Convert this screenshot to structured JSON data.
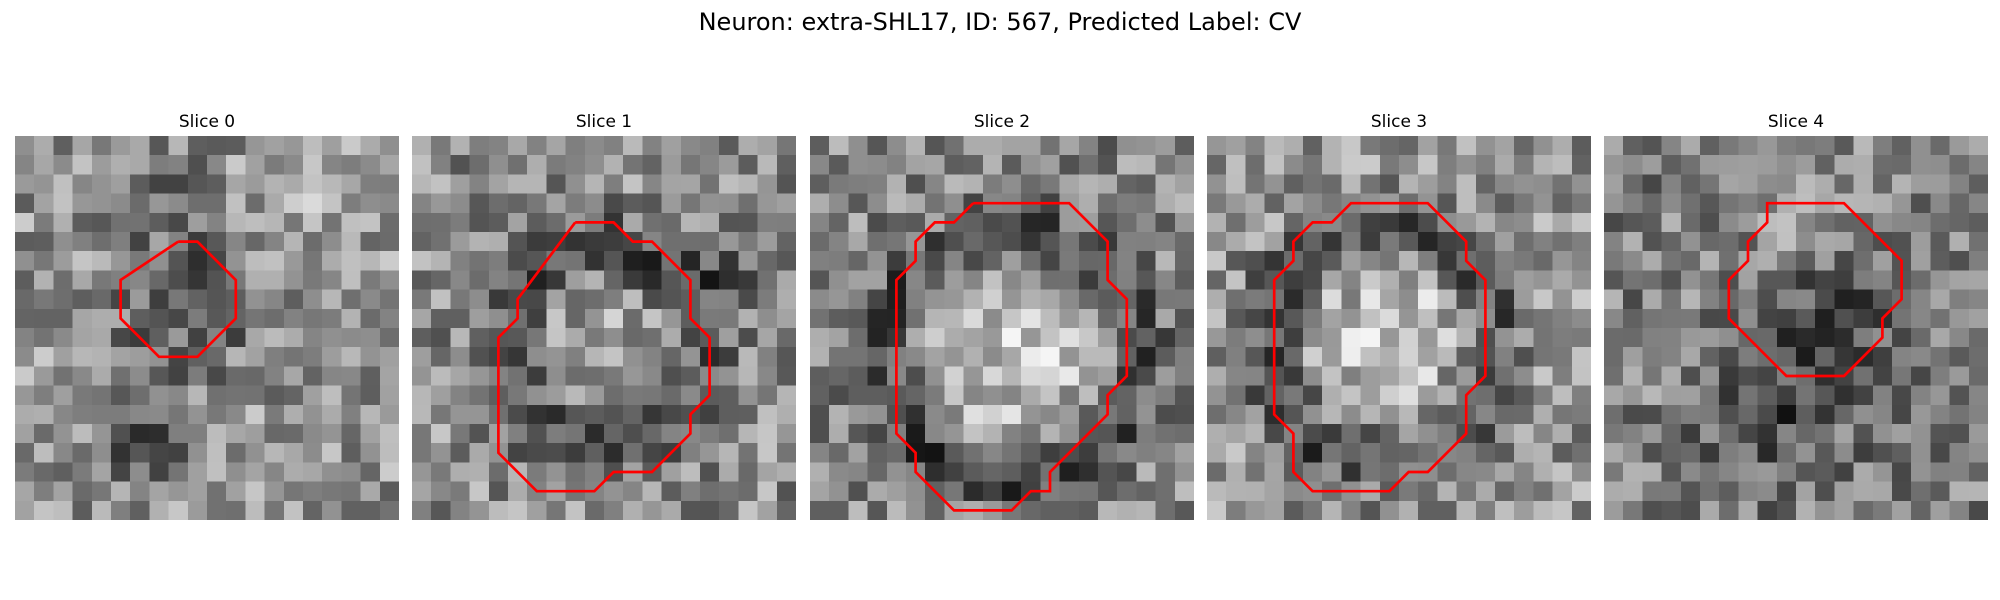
{
  "figure": {
    "title": "Neuron: extra-SHL17, ID: 567, Predicted Label: CV"
  },
  "style": {
    "contour_color": "#ff0000"
  },
  "slices": [
    {
      "title": "Slice 0",
      "contour": [
        [
          8.5,
          5.5
        ],
        [
          9.5,
          5.5
        ],
        [
          11.5,
          7.5
        ],
        [
          11.5,
          9.5
        ],
        [
          10.5,
          10.5
        ],
        [
          9.5,
          11.5
        ],
        [
          7.5,
          11.5
        ],
        [
          6.5,
          10.5
        ],
        [
          5.5,
          9.5
        ],
        [
          5.5,
          7.5
        ]
      ]
    },
    {
      "title": "Slice 1",
      "contour": [
        [
          8.5,
          4.5
        ],
        [
          10.5,
          4.5
        ],
        [
          11.5,
          5.5
        ],
        [
          12.5,
          5.5
        ],
        [
          14.5,
          7.5
        ],
        [
          14.5,
          9.5
        ],
        [
          15.5,
          10.5
        ],
        [
          15.5,
          13.5
        ],
        [
          14.5,
          14.5
        ],
        [
          14.5,
          15.5
        ],
        [
          12.5,
          17.5
        ],
        [
          10.5,
          17.5
        ],
        [
          9.5,
          18.5
        ],
        [
          6.5,
          18.5
        ],
        [
          4.5,
          16.5
        ],
        [
          4.5,
          10.5
        ],
        [
          5.5,
          9.5
        ],
        [
          5.5,
          8.5
        ]
      ]
    },
    {
      "title": "Slice 2",
      "contour": [
        [
          8.5,
          3.5
        ],
        [
          13.5,
          3.5
        ],
        [
          15.5,
          5.5
        ],
        [
          15.5,
          7.5
        ],
        [
          16.5,
          8.5
        ],
        [
          16.5,
          12.5
        ],
        [
          15.5,
          13.5
        ],
        [
          15.5,
          14.5
        ],
        [
          12.5,
          17.5
        ],
        [
          12.5,
          18.5
        ],
        [
          11.5,
          18.5
        ],
        [
          10.5,
          19.5
        ],
        [
          7.5,
          19.5
        ],
        [
          6.5,
          18.5
        ],
        [
          5.5,
          17.5
        ],
        [
          5.5,
          16.5
        ],
        [
          4.5,
          15.5
        ],
        [
          4.5,
          7.5
        ],
        [
          5.5,
          6.5
        ],
        [
          5.5,
          5.5
        ],
        [
          6.5,
          4.5
        ],
        [
          7.5,
          4.5
        ]
      ]
    },
    {
      "title": "Slice 3",
      "contour": [
        [
          8.5,
          3.5
        ],
        [
          11.5,
          3.5
        ],
        [
          13.5,
          5.5
        ],
        [
          13.5,
          6.5
        ],
        [
          14.5,
          7.5
        ],
        [
          14.5,
          12.5
        ],
        [
          13.5,
          13.5
        ],
        [
          13.5,
          15.5
        ],
        [
          11.5,
          17.5
        ],
        [
          10.5,
          17.5
        ],
        [
          9.5,
          18.5
        ],
        [
          5.5,
          18.5
        ],
        [
          4.5,
          17.5
        ],
        [
          4.5,
          15.5
        ],
        [
          3.5,
          14.5
        ],
        [
          3.5,
          7.5
        ],
        [
          4.5,
          6.5
        ],
        [
          4.5,
          5.5
        ],
        [
          5.5,
          4.5
        ],
        [
          6.5,
          4.5
        ],
        [
          7.5,
          3.5
        ]
      ]
    },
    {
      "title": "Slice 4",
      "contour": [
        [
          9.5,
          3.5
        ],
        [
          12.5,
          3.5
        ],
        [
          14.5,
          5.5
        ],
        [
          15.5,
          6.5
        ],
        [
          15.5,
          8.5
        ],
        [
          14.5,
          9.5
        ],
        [
          14.5,
          10.5
        ],
        [
          12.5,
          12.5
        ],
        [
          11.5,
          12.5
        ],
        [
          10.5,
          12.5
        ],
        [
          9.5,
          12.5
        ],
        [
          7.5,
          10.5
        ],
        [
          6.5,
          9.5
        ],
        [
          6.5,
          7.5
        ],
        [
          7.5,
          6.5
        ],
        [
          7.5,
          5.5
        ],
        [
          8.5,
          4.5
        ],
        [
          8.5,
          3.5
        ]
      ]
    }
  ]
}
